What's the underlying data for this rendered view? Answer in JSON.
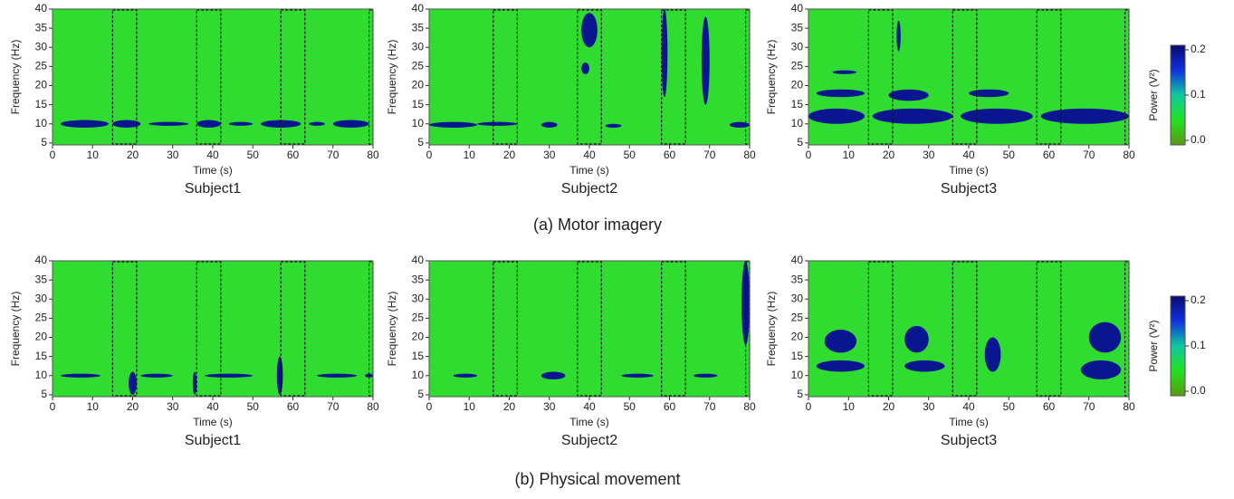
{
  "chart_data": [
    {
      "type": "heatmap",
      "subtitle": "Subject1",
      "x_label": "Time (s)",
      "y_label": "Frequency (Hz)",
      "xlim": [
        0,
        80
      ],
      "ylim": [
        4.5,
        40
      ],
      "xticks": [
        0,
        10,
        20,
        30,
        40,
        50,
        60,
        70,
        80
      ],
      "yticks": [
        5,
        10,
        15,
        20,
        25,
        30,
        35,
        40
      ],
      "background_color": "#2fdc2f",
      "region_color": "#0a168f",
      "task_intervals": [
        [
          15,
          21
        ],
        [
          36,
          42
        ],
        [
          57,
          63
        ],
        [
          79,
          80
        ]
      ],
      "power_regions": [
        [
          2,
          14,
          9,
          11
        ],
        [
          15,
          22,
          9,
          11
        ],
        [
          24,
          34,
          9.5,
          10.5
        ],
        [
          36,
          42,
          9,
          11
        ],
        [
          44,
          50,
          9.5,
          10.5
        ],
        [
          52,
          62,
          9,
          11
        ],
        [
          64,
          68,
          9.5,
          10.5
        ],
        [
          70,
          79,
          9,
          11
        ]
      ]
    },
    {
      "type": "heatmap",
      "subtitle": "Subject2",
      "x_label": "Time (s)",
      "y_label": "Frequency (Hz)",
      "xlim": [
        0,
        80
      ],
      "ylim": [
        4.5,
        40
      ],
      "xticks": [
        0,
        10,
        20,
        30,
        40,
        50,
        60,
        70,
        80
      ],
      "yticks": [
        5,
        10,
        15,
        20,
        25,
        30,
        35,
        40
      ],
      "background_color": "#2fdc2f",
      "region_color": "#0a168f",
      "task_intervals": [
        [
          16,
          22
        ],
        [
          37,
          43
        ],
        [
          58,
          64
        ],
        [
          79,
          80
        ]
      ],
      "power_regions": [
        [
          0,
          12,
          9,
          10.5
        ],
        [
          12,
          22,
          9.5,
          10.5
        ],
        [
          28,
          32,
          9,
          10.5
        ],
        [
          38,
          42,
          30,
          39
        ],
        [
          38,
          40,
          23,
          26
        ],
        [
          44,
          48,
          9,
          10
        ],
        [
          58,
          59.5,
          17,
          40
        ],
        [
          68,
          70,
          15,
          38
        ],
        [
          75,
          80,
          9,
          10.5
        ]
      ]
    },
    {
      "type": "heatmap",
      "subtitle": "Subject3",
      "x_label": "Time (s)",
      "y_label": "Frequency (Hz)",
      "xlim": [
        0,
        80
      ],
      "ylim": [
        4.5,
        40
      ],
      "xticks": [
        0,
        10,
        20,
        30,
        40,
        50,
        60,
        70,
        80
      ],
      "yticks": [
        5,
        10,
        15,
        20,
        25,
        30,
        35,
        40
      ],
      "background_color": "#2fdc2f",
      "region_color": "#0a168f",
      "task_intervals": [
        [
          15,
          21
        ],
        [
          36,
          42
        ],
        [
          57,
          63
        ],
        [
          79,
          80
        ]
      ],
      "power_regions": [
        [
          0,
          14,
          10,
          14
        ],
        [
          16,
          36,
          10,
          14
        ],
        [
          38,
          56,
          10,
          14
        ],
        [
          58,
          80,
          10,
          14
        ],
        [
          2,
          14,
          17,
          19
        ],
        [
          6,
          12,
          23,
          24
        ],
        [
          22,
          23,
          29,
          37
        ],
        [
          20,
          30,
          16,
          19
        ],
        [
          40,
          50,
          17,
          19
        ]
      ]
    },
    {
      "type": "heatmap",
      "subtitle": "Subject1",
      "x_label": "Time (s)",
      "y_label": "Frequency (Hz)",
      "xlim": [
        0,
        80
      ],
      "ylim": [
        4.5,
        40
      ],
      "xticks": [
        0,
        10,
        20,
        30,
        40,
        50,
        60,
        70,
        80
      ],
      "yticks": [
        5,
        10,
        15,
        20,
        25,
        30,
        35,
        40
      ],
      "background_color": "#2fdc2f",
      "region_color": "#0a168f",
      "task_intervals": [
        [
          15,
          21
        ],
        [
          36,
          42
        ],
        [
          57,
          63
        ],
        [
          79,
          80
        ]
      ],
      "power_regions": [
        [
          2,
          12,
          9.5,
          10.5
        ],
        [
          19,
          21,
          5,
          11
        ],
        [
          22,
          30,
          9.5,
          10.5
        ],
        [
          35,
          36,
          5,
          11
        ],
        [
          38,
          50,
          9.5,
          10.5
        ],
        [
          56,
          57.5,
          5,
          15
        ],
        [
          66,
          76,
          9.5,
          10.5
        ],
        [
          78,
          80,
          9.5,
          10.5
        ]
      ]
    },
    {
      "type": "heatmap",
      "subtitle": "Subject2",
      "x_label": "Time (s)",
      "y_label": "Frequency (Hz)",
      "xlim": [
        0,
        80
      ],
      "ylim": [
        4.5,
        40
      ],
      "xticks": [
        0,
        10,
        20,
        30,
        40,
        50,
        60,
        70,
        80
      ],
      "yticks": [
        5,
        10,
        15,
        20,
        25,
        30,
        35,
        40
      ],
      "background_color": "#2fdc2f",
      "region_color": "#0a168f",
      "task_intervals": [
        [
          16,
          22
        ],
        [
          37,
          43
        ],
        [
          58,
          64
        ],
        [
          79,
          80
        ]
      ],
      "power_regions": [
        [
          6,
          12,
          9.5,
          10.5
        ],
        [
          28,
          34,
          9,
          11
        ],
        [
          48,
          56,
          9.5,
          10.5
        ],
        [
          66,
          72,
          9.5,
          10.5
        ],
        [
          78,
          80,
          18,
          40
        ]
      ]
    },
    {
      "type": "heatmap",
      "subtitle": "Subject3",
      "x_label": "Time (s)",
      "y_label": "Frequency (Hz)",
      "xlim": [
        0,
        80
      ],
      "ylim": [
        4.5,
        40
      ],
      "xticks": [
        0,
        10,
        20,
        30,
        40,
        50,
        60,
        70,
        80
      ],
      "yticks": [
        5,
        10,
        15,
        20,
        25,
        30,
        35,
        40
      ],
      "background_color": "#2fdc2f",
      "region_color": "#0a168f",
      "task_intervals": [
        [
          15,
          21
        ],
        [
          36,
          42
        ],
        [
          57,
          63
        ],
        [
          79,
          80
        ]
      ],
      "power_regions": [
        [
          2,
          14,
          11,
          14
        ],
        [
          4,
          12,
          16,
          22
        ],
        [
          24,
          34,
          11,
          14
        ],
        [
          24,
          30,
          16,
          23
        ],
        [
          44,
          48,
          11,
          20
        ],
        [
          68,
          78,
          9,
          14
        ],
        [
          70,
          78,
          16,
          24
        ]
      ]
    }
  ],
  "captions": [
    "(a) Motor imagery",
    "(b) Physical movement"
  ],
  "colorbars": [
    {
      "label": "Power (V²)",
      "lim": [
        -0.01,
        0.21
      ],
      "ticks": [
        {
          "value": 0,
          "label": "0.0"
        },
        0.1,
        0.2
      ],
      "colors": [
        "#5a9a10",
        "#22e022",
        "#10c8a0",
        "#1030e0",
        "#0a0a70"
      ]
    },
    {
      "label": "Power (V²)",
      "lim": [
        -0.01,
        0.21
      ],
      "ticks": [
        {
          "value": 0,
          "label": "0.0"
        },
        0.1,
        0.2
      ],
      "colors": [
        "#5a9a10",
        "#22e022",
        "#10c8a0",
        "#1030e0",
        "#0a0a70"
      ]
    }
  ]
}
